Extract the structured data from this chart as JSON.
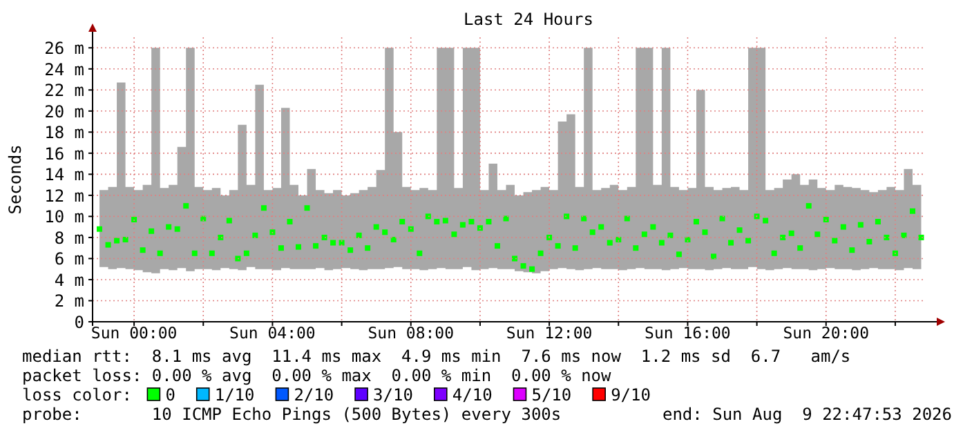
{
  "chart_data": {
    "type": "scatter",
    "title": "Last 24 Hours",
    "ylabel": "Seconds",
    "legend_title": "loss color:",
    "legend": "bottom",
    "grid": true,
    "marker": "square",
    "xlim": [
      "2026-08-08T22:48",
      "2026-08-09T22:48"
    ],
    "xticks": [
      {
        "value": "2026-08-09T00:00",
        "label": "Sun 00:00"
      },
      {
        "value": "2026-08-09T02:00",
        "label": null
      },
      {
        "value": "2026-08-09T04:00",
        "label": "Sun 04:00"
      },
      {
        "value": "2026-08-09T06:00",
        "label": null
      },
      {
        "value": "2026-08-09T08:00",
        "label": "Sun 08:00"
      },
      {
        "value": "2026-08-09T10:00",
        "label": null
      },
      {
        "value": "2026-08-09T12:00",
        "label": "Sun 12:00"
      },
      {
        "value": "2026-08-09T14:00",
        "label": null
      },
      {
        "value": "2026-08-09T16:00",
        "label": "Sun 16:00"
      },
      {
        "value": "2026-08-09T18:00",
        "label": null
      },
      {
        "value": "2026-08-09T20:00",
        "label": "Sun 20:00"
      },
      {
        "value": "2026-08-09T22:00",
        "label": null
      }
    ],
    "ylim": [
      0,
      27
    ],
    "yticks": [
      0,
      {
        "value": 2,
        "label": "2 m"
      },
      {
        "value": 4,
        "label": "4 m"
      },
      {
        "value": 6,
        "label": "6 m"
      },
      {
        "value": 8,
        "label": "8 m"
      },
      {
        "value": 10,
        "label": "10 m"
      },
      {
        "value": 12,
        "label": "12 m"
      },
      {
        "value": 14,
        "label": "14 m"
      },
      {
        "value": 16,
        "label": "16 m"
      },
      {
        "value": 18,
        "label": "18 m"
      },
      {
        "value": 20,
        "label": "20 m"
      },
      {
        "value": 22,
        "label": "22 m"
      },
      {
        "value": 24,
        "label": "24 m"
      },
      {
        "value": 26,
        "label": "26 m"
      }
    ],
    "x": [
      "2026-08-08T23:00",
      "2026-08-08T23:15",
      "2026-08-08T23:30",
      "2026-08-08T23:45",
      "2026-08-09T00:00",
      "2026-08-09T00:15",
      "2026-08-09T00:30",
      "2026-08-09T00:45",
      "2026-08-09T01:00",
      "2026-08-09T01:15",
      "2026-08-09T01:30",
      "2026-08-09T01:45",
      "2026-08-09T02:00",
      "2026-08-09T02:15",
      "2026-08-09T02:30",
      "2026-08-09T02:45",
      "2026-08-09T03:00",
      "2026-08-09T03:15",
      "2026-08-09T03:30",
      "2026-08-09T03:45",
      "2026-08-09T04:00",
      "2026-08-09T04:15",
      "2026-08-09T04:30",
      "2026-08-09T04:45",
      "2026-08-09T05:00",
      "2026-08-09T05:15",
      "2026-08-09T05:30",
      "2026-08-09T05:45",
      "2026-08-09T06:00",
      "2026-08-09T06:15",
      "2026-08-09T06:30",
      "2026-08-09T06:45",
      "2026-08-09T07:00",
      "2026-08-09T07:15",
      "2026-08-09T07:30",
      "2026-08-09T07:45",
      "2026-08-09T08:00",
      "2026-08-09T08:15",
      "2026-08-09T08:30",
      "2026-08-09T08:45",
      "2026-08-09T09:00",
      "2026-08-09T09:15",
      "2026-08-09T09:30",
      "2026-08-09T09:45",
      "2026-08-09T10:00",
      "2026-08-09T10:15",
      "2026-08-09T10:30",
      "2026-08-09T10:45",
      "2026-08-09T11:00",
      "2026-08-09T11:15",
      "2026-08-09T11:30",
      "2026-08-09T11:45",
      "2026-08-09T12:00",
      "2026-08-09T12:15",
      "2026-08-09T12:30",
      "2026-08-09T12:45",
      "2026-08-09T13:00",
      "2026-08-09T13:15",
      "2026-08-09T13:30",
      "2026-08-09T13:45",
      "2026-08-09T14:00",
      "2026-08-09T14:15",
      "2026-08-09T14:30",
      "2026-08-09T14:45",
      "2026-08-09T15:00",
      "2026-08-09T15:15",
      "2026-08-09T15:30",
      "2026-08-09T15:45",
      "2026-08-09T16:00",
      "2026-08-09T16:15",
      "2026-08-09T16:30",
      "2026-08-09T16:45",
      "2026-08-09T17:00",
      "2026-08-09T17:15",
      "2026-08-09T17:30",
      "2026-08-09T17:45",
      "2026-08-09T18:00",
      "2026-08-09T18:15",
      "2026-08-09T18:30",
      "2026-08-09T18:45",
      "2026-08-09T19:00",
      "2026-08-09T19:15",
      "2026-08-09T19:30",
      "2026-08-09T19:45",
      "2026-08-09T20:00",
      "2026-08-09T20:15",
      "2026-08-09T20:30",
      "2026-08-09T20:45",
      "2026-08-09T21:00",
      "2026-08-09T21:15",
      "2026-08-09T21:30",
      "2026-08-09T21:45",
      "2026-08-09T22:00",
      "2026-08-09T22:15",
      "2026-08-09T22:30",
      "2026-08-09T22:45"
    ],
    "series": [
      {
        "name": "0",
        "color": "#00ff00",
        "values": [
          8.8,
          7.3,
          7.7,
          7.8,
          9.7,
          6.8,
          8.6,
          6.5,
          9,
          8.8,
          11,
          6.5,
          9.8,
          6.5,
          8,
          9.6,
          6,
          6.5,
          8.2,
          10.8,
          8.5,
          7,
          9.5,
          7.1,
          10.8,
          7.2,
          8,
          7.5,
          7.5,
          6.8,
          8.2,
          7,
          9,
          8.5,
          7.8,
          9.5,
          8.8,
          6.5,
          10,
          9.5,
          9.6,
          8.3,
          9.2,
          9.5,
          8.9,
          9.5,
          7.2,
          9.8,
          6,
          5.3,
          5,
          6.5,
          8,
          7.2,
          10,
          7,
          9.8,
          8.5,
          9,
          7.5,
          7.8,
          9.8,
          7,
          8.3,
          9,
          7.5,
          8.2,
          6.4,
          7.8,
          9.5,
          8.5,
          6.2,
          9.8,
          7.5,
          8.7,
          7.7,
          10,
          9.6,
          6.5,
          8,
          8.4,
          7,
          11,
          8.3,
          9.7,
          7.7,
          9,
          6.8,
          9.2,
          7.6,
          9.5,
          8,
          6.5,
          8.2,
          10.5,
          8
        ],
        "lower": [
          5.2,
          5,
          5.1,
          5,
          4.9,
          4.7,
          4.6,
          5,
          4.9,
          5.1,
          4.8,
          5,
          5,
          4.9,
          5.1,
          5,
          4.9,
          5.2,
          5,
          5,
          4.9,
          5.1,
          5,
          5,
          5,
          5.1,
          4.9,
          5,
          5.1,
          5,
          4.9,
          5,
          5,
          5.1,
          5.2,
          5,
          5,
          4.9,
          5,
          5.1,
          5,
          5,
          5.2,
          4.9,
          5,
          5.1,
          5,
          5,
          4.8,
          4.7,
          4.6,
          4.8,
          5,
          5.1,
          5,
          4.9,
          5,
          5.1,
          5,
          5,
          4.9,
          5,
          5.1,
          5,
          5,
          4.9,
          5,
          5.1,
          5,
          5,
          4.9,
          5,
          5.1,
          5,
          5,
          5.2,
          5,
          4.9,
          5,
          5.1,
          5,
          5,
          4.9,
          5,
          5.1,
          5,
          5,
          4.9,
          5,
          5.1,
          5,
          5,
          4.9,
          5.1,
          5,
          5
        ],
        "upper": [
          12.5,
          12.8,
          22.7,
          12.8,
          12.5,
          13,
          26,
          12.7,
          13,
          16.6,
          26,
          12.8,
          12.5,
          12.7,
          12,
          12.5,
          18.7,
          13,
          22.5,
          12.5,
          12.7,
          20.3,
          13,
          12,
          14.5,
          12.5,
          12.2,
          12.5,
          12,
          12.2,
          12.5,
          12.8,
          14.4,
          26,
          18,
          12.8,
          12.5,
          12.7,
          12.5,
          26,
          26,
          12.7,
          26,
          26,
          12.5,
          15,
          12.5,
          13,
          12,
          12.3,
          12.5,
          12.8,
          12.5,
          19,
          19.7,
          12.8,
          26,
          12.5,
          12.7,
          13,
          12.5,
          12.8,
          26,
          26,
          13,
          26,
          12.8,
          12.5,
          12.7,
          22,
          12.8,
          12.5,
          12.7,
          12.8,
          12.5,
          26,
          26,
          12.5,
          12.7,
          13.5,
          14,
          13,
          13.5,
          12.7,
          12.5,
          13,
          12.8,
          12.7,
          12.5,
          12.3,
          12.5,
          12.8,
          12.5,
          14.5,
          13,
          12.7
        ]
      },
      {
        "name": "1/10",
        "color": "#00b8ff",
        "values": [
          null,
          null,
          null,
          null,
          null,
          null,
          null,
          null,
          null,
          null,
          null,
          null,
          null,
          null,
          null,
          null,
          null,
          null,
          null,
          null,
          null,
          null,
          null,
          null,
          null,
          null,
          null,
          null,
          null,
          null,
          null,
          null,
          null,
          null,
          null,
          null,
          null,
          null,
          null,
          null,
          null,
          null,
          null,
          null,
          null,
          null,
          null,
          null,
          null,
          null,
          null,
          null,
          null,
          null,
          null,
          null,
          null,
          null,
          null,
          null,
          null,
          null,
          null,
          null,
          null,
          null,
          null,
          null,
          null,
          null,
          null,
          null,
          null,
          null,
          null,
          null,
          null,
          null,
          null,
          null,
          null,
          null,
          null,
          null,
          null,
          null,
          null,
          null,
          null,
          null,
          null,
          null,
          null,
          null,
          null,
          null
        ]
      },
      {
        "name": "2/10",
        "color": "#0059ff",
        "values": [
          null,
          null,
          null,
          null,
          null,
          null,
          null,
          null,
          null,
          null,
          null,
          null,
          null,
          null,
          null,
          null,
          null,
          null,
          null,
          null,
          null,
          null,
          null,
          null,
          null,
          null,
          null,
          null,
          null,
          null,
          null,
          null,
          null,
          null,
          null,
          null,
          null,
          null,
          null,
          null,
          null,
          null,
          null,
          null,
          null,
          null,
          null,
          null,
          null,
          null,
          null,
          null,
          null,
          null,
          null,
          null,
          null,
          null,
          null,
          null,
          null,
          null,
          null,
          null,
          null,
          null,
          null,
          null,
          null,
          null,
          null,
          null,
          null,
          null,
          null,
          null,
          null,
          null,
          null,
          null,
          null,
          null,
          null,
          null,
          null,
          null,
          null,
          null,
          null,
          null,
          null,
          null,
          null,
          null,
          null,
          null
        ]
      },
      {
        "name": "3/10",
        "color": "#5e00ff",
        "values": [
          null,
          null,
          null,
          null,
          null,
          null,
          null,
          null,
          null,
          null,
          null,
          null,
          null,
          null,
          null,
          null,
          null,
          null,
          null,
          null,
          null,
          null,
          null,
          null,
          null,
          null,
          null,
          null,
          null,
          null,
          null,
          null,
          null,
          null,
          null,
          null,
          null,
          null,
          null,
          null,
          null,
          null,
          null,
          null,
          null,
          null,
          null,
          null,
          null,
          null,
          null,
          null,
          null,
          null,
          null,
          null,
          null,
          null,
          null,
          null,
          null,
          null,
          null,
          null,
          null,
          null,
          null,
          null,
          null,
          null,
          null,
          null,
          null,
          null,
          null,
          null,
          null,
          null,
          null,
          null,
          null,
          null,
          null,
          null,
          null,
          null,
          null,
          null,
          null,
          null,
          null,
          null,
          null,
          null,
          null,
          null
        ]
      },
      {
        "name": "4/10",
        "color": "#7e00ff",
        "values": [
          null,
          null,
          null,
          null,
          null,
          null,
          null,
          null,
          null,
          null,
          null,
          null,
          null,
          null,
          null,
          null,
          null,
          null,
          null,
          null,
          null,
          null,
          null,
          null,
          null,
          null,
          null,
          null,
          null,
          null,
          null,
          null,
          null,
          null,
          null,
          null,
          null,
          null,
          null,
          null,
          null,
          null,
          null,
          null,
          null,
          null,
          null,
          null,
          null,
          null,
          null,
          null,
          null,
          null,
          null,
          null,
          null,
          null,
          null,
          null,
          null,
          null,
          null,
          null,
          null,
          null,
          null,
          null,
          null,
          null,
          null,
          null,
          null,
          null,
          null,
          null,
          null,
          null,
          null,
          null,
          null,
          null,
          null,
          null,
          null,
          null,
          null,
          null,
          null,
          null,
          null,
          null,
          null,
          null,
          null,
          null
        ]
      },
      {
        "name": "5/10",
        "color": "#dd00ff",
        "values": [
          null,
          null,
          null,
          null,
          null,
          null,
          null,
          null,
          null,
          null,
          null,
          null,
          null,
          null,
          null,
          null,
          null,
          null,
          null,
          null,
          null,
          null,
          null,
          null,
          null,
          null,
          null,
          null,
          null,
          null,
          null,
          null,
          null,
          null,
          null,
          null,
          null,
          null,
          null,
          null,
          null,
          null,
          null,
          null,
          null,
          null,
          null,
          null,
          null,
          null,
          null,
          null,
          null,
          null,
          null,
          null,
          null,
          null,
          null,
          null,
          null,
          null,
          null,
          null,
          null,
          null,
          null,
          null,
          null,
          null,
          null,
          null,
          null,
          null,
          null,
          null,
          null,
          null,
          null,
          null,
          null,
          null,
          null,
          null,
          null,
          null,
          null,
          null,
          null,
          null,
          null,
          null,
          null,
          null,
          null,
          null
        ]
      },
      {
        "name": "9/10",
        "color": "#ff0000",
        "values": [
          null,
          null,
          null,
          null,
          null,
          null,
          null,
          null,
          null,
          null,
          null,
          null,
          null,
          null,
          null,
          null,
          null,
          null,
          null,
          null,
          null,
          null,
          null,
          null,
          null,
          null,
          null,
          null,
          null,
          null,
          null,
          null,
          null,
          null,
          null,
          null,
          null,
          null,
          null,
          null,
          null,
          null,
          null,
          null,
          null,
          null,
          null,
          null,
          null,
          null,
          null,
          null,
          null,
          null,
          null,
          null,
          null,
          null,
          null,
          null,
          null,
          null,
          null,
          null,
          null,
          null,
          null,
          null,
          null,
          null,
          null,
          null,
          null,
          null,
          null,
          null,
          null,
          null,
          null,
          null,
          null,
          null,
          null,
          null,
          null,
          null,
          null,
          null,
          null,
          null,
          null,
          null,
          null,
          null,
          null,
          null
        ]
      }
    ],
    "annotations": [
      "median rtt:  8.1 ms avg  11.4 ms max  4.9 ms min  7.6 ms now  1.2 ms sd  6.7   am/s",
      "packet loss: 0.00 % avg  0.00 % max  0.00 % min  0.00 % now",
      "probe:       10 ICMP Echo Pings (500 Bytes) every 300s",
      "end: Sun Aug  9 22:47:53 2026"
    ]
  }
}
